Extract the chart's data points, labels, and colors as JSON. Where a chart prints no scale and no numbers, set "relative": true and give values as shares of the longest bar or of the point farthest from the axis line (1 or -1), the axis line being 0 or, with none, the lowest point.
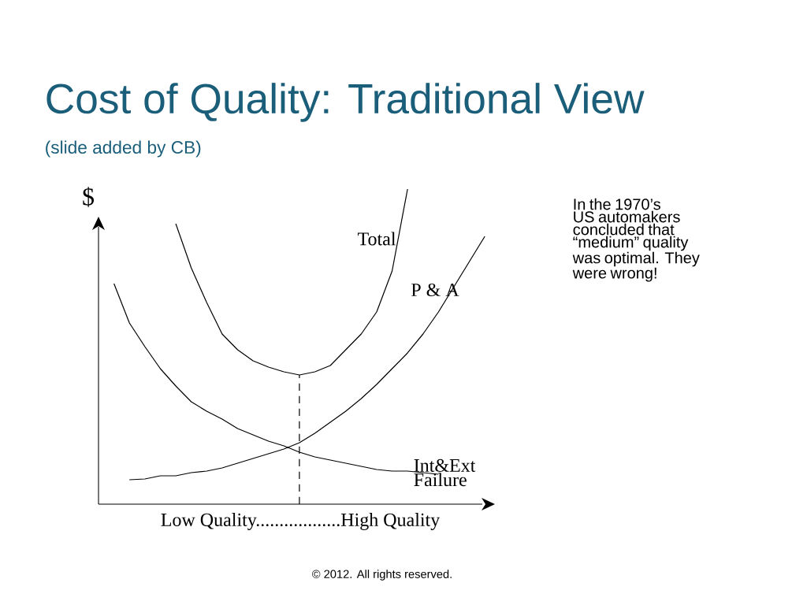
{
  "chart_data": {
    "type": "line",
    "title": "Cost of Quality: Traditional View",
    "subtitle": "(slide added by CB)",
    "xlabel": "Low Quality..................High Quality",
    "ylabel": "$",
    "relative": true,
    "annotations": [
      "In the 1970’s US automakers concluded that “medium” quality was optimal. They were wrong!",
      "© 2012. All rights reserved."
    ],
    "categories": [
      null,
      null,
      null,
      null,
      null,
      null,
      null,
      null,
      null,
      null,
      null,
      null,
      null,
      null,
      null,
      null,
      null,
      null,
      null,
      null,
      null,
      null,
      null,
      null,
      null,
      null
    ],
    "series": [
      {
        "name": "Total",
        "color": "#000000",
        "values": [
          null,
          null,
          null,
          null,
          null,
          0.89,
          0.75,
          0.64,
          0.54,
          0.49,
          0.455,
          0.435,
          0.42,
          0.41,
          0.42,
          0.44,
          0.49,
          0.54,
          0.61,
          0.74,
          1.0,
          null,
          null,
          null,
          null,
          null
        ]
      },
      {
        "name": "P & A",
        "color": "#000000",
        "values": [
          null,
          null,
          0.0775,
          0.08,
          0.09,
          0.09,
          0.1,
          0.105,
          0.115,
          0.13,
          0.145,
          0.16,
          0.175,
          0.195,
          0.225,
          0.26,
          0.295,
          0.335,
          0.38,
          0.43,
          0.48,
          0.54,
          0.61,
          0.69,
          0.77,
          0.85
        ]
      },
      {
        "name": "Int&Ext Failure",
        "color": "#000000",
        "values": [
          null,
          0.7,
          0.575,
          0.5,
          0.43,
          0.375,
          0.325,
          0.295,
          0.27,
          0.24,
          0.22,
          0.2,
          0.185,
          0.165,
          0.15,
          0.14,
          0.13,
          0.12,
          0.11,
          0.105,
          0.105,
          0.1,
          0.095,
          null,
          null,
          null
        ]
      }
    ],
    "marker": "none",
    "line_style": "solid"
  }
}
